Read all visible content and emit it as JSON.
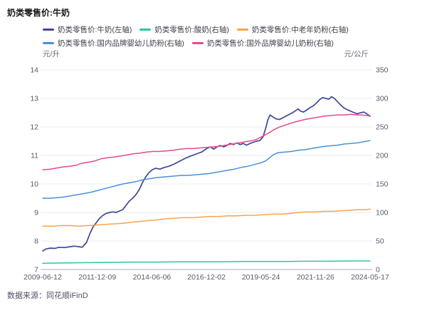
{
  "title": "奶类零售价:牛奶",
  "source": "数据来源：同花顺iFinD",
  "chart_data": {
    "type": "line",
    "title": "奶类零售价:牛奶",
    "grid": true,
    "legend_position": "top",
    "left_axis": {
      "label": "元/升",
      "min": 7,
      "max": 14,
      "tick_step": 1
    },
    "right_axis": {
      "label": "元/公斤",
      "min": 0,
      "max": 350,
      "tick_step": 50
    },
    "x_range": [
      2009.45,
      2024.38
    ],
    "x_ticks": [
      {
        "label": "2009-06-12",
        "t": 2009.45
      },
      {
        "label": "2011-12-09",
        "t": 2011.94
      },
      {
        "label": "2014-06-06",
        "t": 2014.43
      },
      {
        "label": "2016-12-02",
        "t": 2016.92
      },
      {
        "label": "2019-05-24",
        "t": 2019.4
      },
      {
        "label": "2021-11-26",
        "t": 2021.89
      },
      {
        "label": "2024-05-17",
        "t": 2024.38
      }
    ],
    "series": [
      {
        "name": "奶类零售价:牛奶(左轴)",
        "axis": "left",
        "color": "#3e4795",
        "points": [
          [
            2009.45,
            7.65
          ],
          [
            2009.6,
            7.72
          ],
          [
            2009.8,
            7.75
          ],
          [
            2010.0,
            7.74
          ],
          [
            2010.2,
            7.78
          ],
          [
            2010.45,
            7.77
          ],
          [
            2010.7,
            7.8
          ],
          [
            2010.9,
            7.82
          ],
          [
            2011.1,
            7.8
          ],
          [
            2011.25,
            7.78
          ],
          [
            2011.45,
            7.95
          ],
          [
            2011.6,
            8.25
          ],
          [
            2011.75,
            8.5
          ],
          [
            2011.9,
            8.65
          ],
          [
            2012.05,
            8.8
          ],
          [
            2012.2,
            8.9
          ],
          [
            2012.35,
            8.97
          ],
          [
            2012.5,
            9.0
          ],
          [
            2012.65,
            9.02
          ],
          [
            2012.8,
            9.0
          ],
          [
            2012.95,
            9.05
          ],
          [
            2013.1,
            9.1
          ],
          [
            2013.25,
            9.25
          ],
          [
            2013.4,
            9.4
          ],
          [
            2013.55,
            9.5
          ],
          [
            2013.7,
            9.62
          ],
          [
            2013.85,
            9.8
          ],
          [
            2014.0,
            10.05
          ],
          [
            2014.15,
            10.25
          ],
          [
            2014.3,
            10.4
          ],
          [
            2014.45,
            10.5
          ],
          [
            2014.6,
            10.55
          ],
          [
            2014.8,
            10.52
          ],
          [
            2015.0,
            10.58
          ],
          [
            2015.2,
            10.62
          ],
          [
            2015.45,
            10.7
          ],
          [
            2015.7,
            10.8
          ],
          [
            2015.95,
            10.9
          ],
          [
            2016.2,
            10.98
          ],
          [
            2016.45,
            11.05
          ],
          [
            2016.7,
            11.12
          ],
          [
            2016.95,
            11.25
          ],
          [
            2017.1,
            11.3
          ],
          [
            2017.25,
            11.22
          ],
          [
            2017.4,
            11.3
          ],
          [
            2017.55,
            11.35
          ],
          [
            2017.7,
            11.3
          ],
          [
            2017.85,
            11.35
          ],
          [
            2018.0,
            11.42
          ],
          [
            2018.15,
            11.38
          ],
          [
            2018.3,
            11.44
          ],
          [
            2018.45,
            11.38
          ],
          [
            2018.6,
            11.42
          ],
          [
            2018.75,
            11.36
          ],
          [
            2018.9,
            11.42
          ],
          [
            2019.05,
            11.46
          ],
          [
            2019.2,
            11.5
          ],
          [
            2019.35,
            11.52
          ],
          [
            2019.5,
            11.65
          ],
          [
            2019.62,
            11.95
          ],
          [
            2019.72,
            12.25
          ],
          [
            2019.82,
            12.42
          ],
          [
            2019.95,
            12.35
          ],
          [
            2020.1,
            12.28
          ],
          [
            2020.25,
            12.26
          ],
          [
            2020.4,
            12.32
          ],
          [
            2020.55,
            12.38
          ],
          [
            2020.7,
            12.44
          ],
          [
            2020.85,
            12.5
          ],
          [
            2021.0,
            12.58
          ],
          [
            2021.1,
            12.63
          ],
          [
            2021.22,
            12.55
          ],
          [
            2021.35,
            12.52
          ],
          [
            2021.5,
            12.6
          ],
          [
            2021.65,
            12.68
          ],
          [
            2021.8,
            12.74
          ],
          [
            2021.95,
            12.85
          ],
          [
            2022.1,
            12.97
          ],
          [
            2022.22,
            13.03
          ],
          [
            2022.35,
            13.0
          ],
          [
            2022.5,
            12.97
          ],
          [
            2022.62,
            13.06
          ],
          [
            2022.75,
            13.0
          ],
          [
            2022.9,
            12.88
          ],
          [
            2023.05,
            12.76
          ],
          [
            2023.2,
            12.66
          ],
          [
            2023.35,
            12.6
          ],
          [
            2023.5,
            12.55
          ],
          [
            2023.65,
            12.5
          ],
          [
            2023.8,
            12.46
          ],
          [
            2023.95,
            12.5
          ],
          [
            2024.1,
            12.52
          ],
          [
            2024.25,
            12.45
          ],
          [
            2024.38,
            12.37
          ]
        ]
      },
      {
        "name": "奶类零售价:酸奶(右轴)",
        "axis": "right",
        "color": "#2bc5a5",
        "points": [
          [
            2009.45,
            11
          ],
          [
            2010.5,
            11.5
          ],
          [
            2011.5,
            12
          ],
          [
            2012.5,
            12.5
          ],
          [
            2013.5,
            13
          ],
          [
            2014.5,
            13
          ],
          [
            2015.5,
            13.5
          ],
          [
            2016.5,
            13.5
          ],
          [
            2017.5,
            13.5
          ],
          [
            2018.5,
            14
          ],
          [
            2019.5,
            14
          ],
          [
            2020.5,
            14
          ],
          [
            2021.5,
            14.5
          ],
          [
            2022.5,
            14.5
          ],
          [
            2023.5,
            15
          ],
          [
            2024.38,
            15
          ]
        ]
      },
      {
        "name": "奶类零售价:中老年奶粉(右轴)",
        "axis": "right",
        "color": "#f7a54a",
        "points": [
          [
            2009.45,
            76
          ],
          [
            2009.9,
            76
          ],
          [
            2010.3,
            77
          ],
          [
            2010.7,
            77
          ],
          [
            2011.1,
            76
          ],
          [
            2011.5,
            77
          ],
          [
            2011.9,
            78
          ],
          [
            2012.3,
            79
          ],
          [
            2012.7,
            80
          ],
          [
            2013.1,
            81
          ],
          [
            2013.5,
            83
          ],
          [
            2013.9,
            84
          ],
          [
            2014.3,
            86
          ],
          [
            2014.7,
            87
          ],
          [
            2015.1,
            89
          ],
          [
            2015.5,
            90
          ],
          [
            2015.9,
            91
          ],
          [
            2016.3,
            91
          ],
          [
            2016.7,
            92
          ],
          [
            2017.1,
            93
          ],
          [
            2017.5,
            93
          ],
          [
            2017.9,
            94
          ],
          [
            2018.3,
            94
          ],
          [
            2018.7,
            95
          ],
          [
            2019.1,
            95
          ],
          [
            2019.5,
            96
          ],
          [
            2019.9,
            97
          ],
          [
            2020.3,
            97
          ],
          [
            2020.7,
            98
          ],
          [
            2021.1,
            100
          ],
          [
            2021.5,
            101
          ],
          [
            2021.9,
            101
          ],
          [
            2022.3,
            102
          ],
          [
            2022.7,
            102
          ],
          [
            2023.1,
            103
          ],
          [
            2023.5,
            104
          ],
          [
            2023.9,
            105
          ],
          [
            2024.2,
            105
          ],
          [
            2024.38,
            106
          ]
        ]
      },
      {
        "name": "奶类零售价:国内品牌婴幼儿奶粉(右轴)",
        "axis": "right",
        "color": "#4a90db",
        "points": [
          [
            2009.45,
            125
          ],
          [
            2009.8,
            125
          ],
          [
            2010.1,
            126
          ],
          [
            2010.4,
            127
          ],
          [
            2010.7,
            129
          ],
          [
            2011.0,
            131
          ],
          [
            2011.3,
            133
          ],
          [
            2011.6,
            135
          ],
          [
            2011.9,
            138
          ],
          [
            2012.2,
            141
          ],
          [
            2012.5,
            144
          ],
          [
            2012.8,
            147
          ],
          [
            2013.1,
            150
          ],
          [
            2013.4,
            152
          ],
          [
            2013.7,
            154
          ],
          [
            2014.0,
            157
          ],
          [
            2014.3,
            159
          ],
          [
            2014.6,
            161
          ],
          [
            2014.9,
            162
          ],
          [
            2015.2,
            163
          ],
          [
            2015.5,
            164
          ],
          [
            2015.8,
            165
          ],
          [
            2016.1,
            165
          ],
          [
            2016.4,
            166
          ],
          [
            2016.7,
            167
          ],
          [
            2017.0,
            168
          ],
          [
            2017.3,
            170
          ],
          [
            2017.6,
            172
          ],
          [
            2017.9,
            174
          ],
          [
            2018.2,
            176
          ],
          [
            2018.5,
            179
          ],
          [
            2018.8,
            181
          ],
          [
            2019.1,
            184
          ],
          [
            2019.4,
            187
          ],
          [
            2019.6,
            190
          ],
          [
            2019.8,
            196
          ],
          [
            2020.0,
            202
          ],
          [
            2020.2,
            205
          ],
          [
            2020.5,
            206
          ],
          [
            2020.8,
            207
          ],
          [
            2021.1,
            209
          ],
          [
            2021.4,
            210
          ],
          [
            2021.7,
            212
          ],
          [
            2022.0,
            214
          ],
          [
            2022.3,
            216
          ],
          [
            2022.6,
            217
          ],
          [
            2022.9,
            218
          ],
          [
            2023.2,
            220
          ],
          [
            2023.5,
            221
          ],
          [
            2023.8,
            222
          ],
          [
            2024.1,
            224
          ],
          [
            2024.38,
            226
          ]
        ]
      },
      {
        "name": "奶类零售价:国外品牌婴幼儿奶粉(右轴)",
        "axis": "right",
        "color": "#e8498d",
        "points": [
          [
            2009.45,
            175
          ],
          [
            2009.8,
            176
          ],
          [
            2010.1,
            178
          ],
          [
            2010.4,
            180
          ],
          [
            2010.7,
            181
          ],
          [
            2011.0,
            183
          ],
          [
            2011.2,
            186
          ],
          [
            2011.5,
            188
          ],
          [
            2011.8,
            190
          ],
          [
            2012.1,
            194
          ],
          [
            2012.4,
            196
          ],
          [
            2012.7,
            197
          ],
          [
            2013.0,
            199
          ],
          [
            2013.3,
            201
          ],
          [
            2013.6,
            203
          ],
          [
            2013.9,
            204
          ],
          [
            2014.2,
            206
          ],
          [
            2014.5,
            207
          ],
          [
            2014.8,
            207
          ],
          [
            2015.1,
            208
          ],
          [
            2015.4,
            209
          ],
          [
            2015.7,
            211
          ],
          [
            2016.0,
            212
          ],
          [
            2016.3,
            212
          ],
          [
            2016.6,
            213
          ],
          [
            2016.9,
            214
          ],
          [
            2017.2,
            215
          ],
          [
            2017.5,
            216
          ],
          [
            2017.8,
            218
          ],
          [
            2018.1,
            220
          ],
          [
            2018.4,
            222
          ],
          [
            2018.7,
            224
          ],
          [
            2019.0,
            226
          ],
          [
            2019.2,
            228
          ],
          [
            2019.45,
            233
          ],
          [
            2019.7,
            238
          ],
          [
            2019.95,
            244
          ],
          [
            2020.2,
            249
          ],
          [
            2020.5,
            253
          ],
          [
            2020.8,
            257
          ],
          [
            2021.1,
            260
          ],
          [
            2021.4,
            263
          ],
          [
            2021.7,
            265
          ],
          [
            2022.0,
            267
          ],
          [
            2022.3,
            269
          ],
          [
            2022.6,
            270
          ],
          [
            2022.9,
            271
          ],
          [
            2023.2,
            271
          ],
          [
            2023.5,
            272
          ],
          [
            2023.8,
            271
          ],
          [
            2024.0,
            271
          ],
          [
            2024.2,
            270
          ],
          [
            2024.38,
            269
          ]
        ]
      }
    ]
  }
}
